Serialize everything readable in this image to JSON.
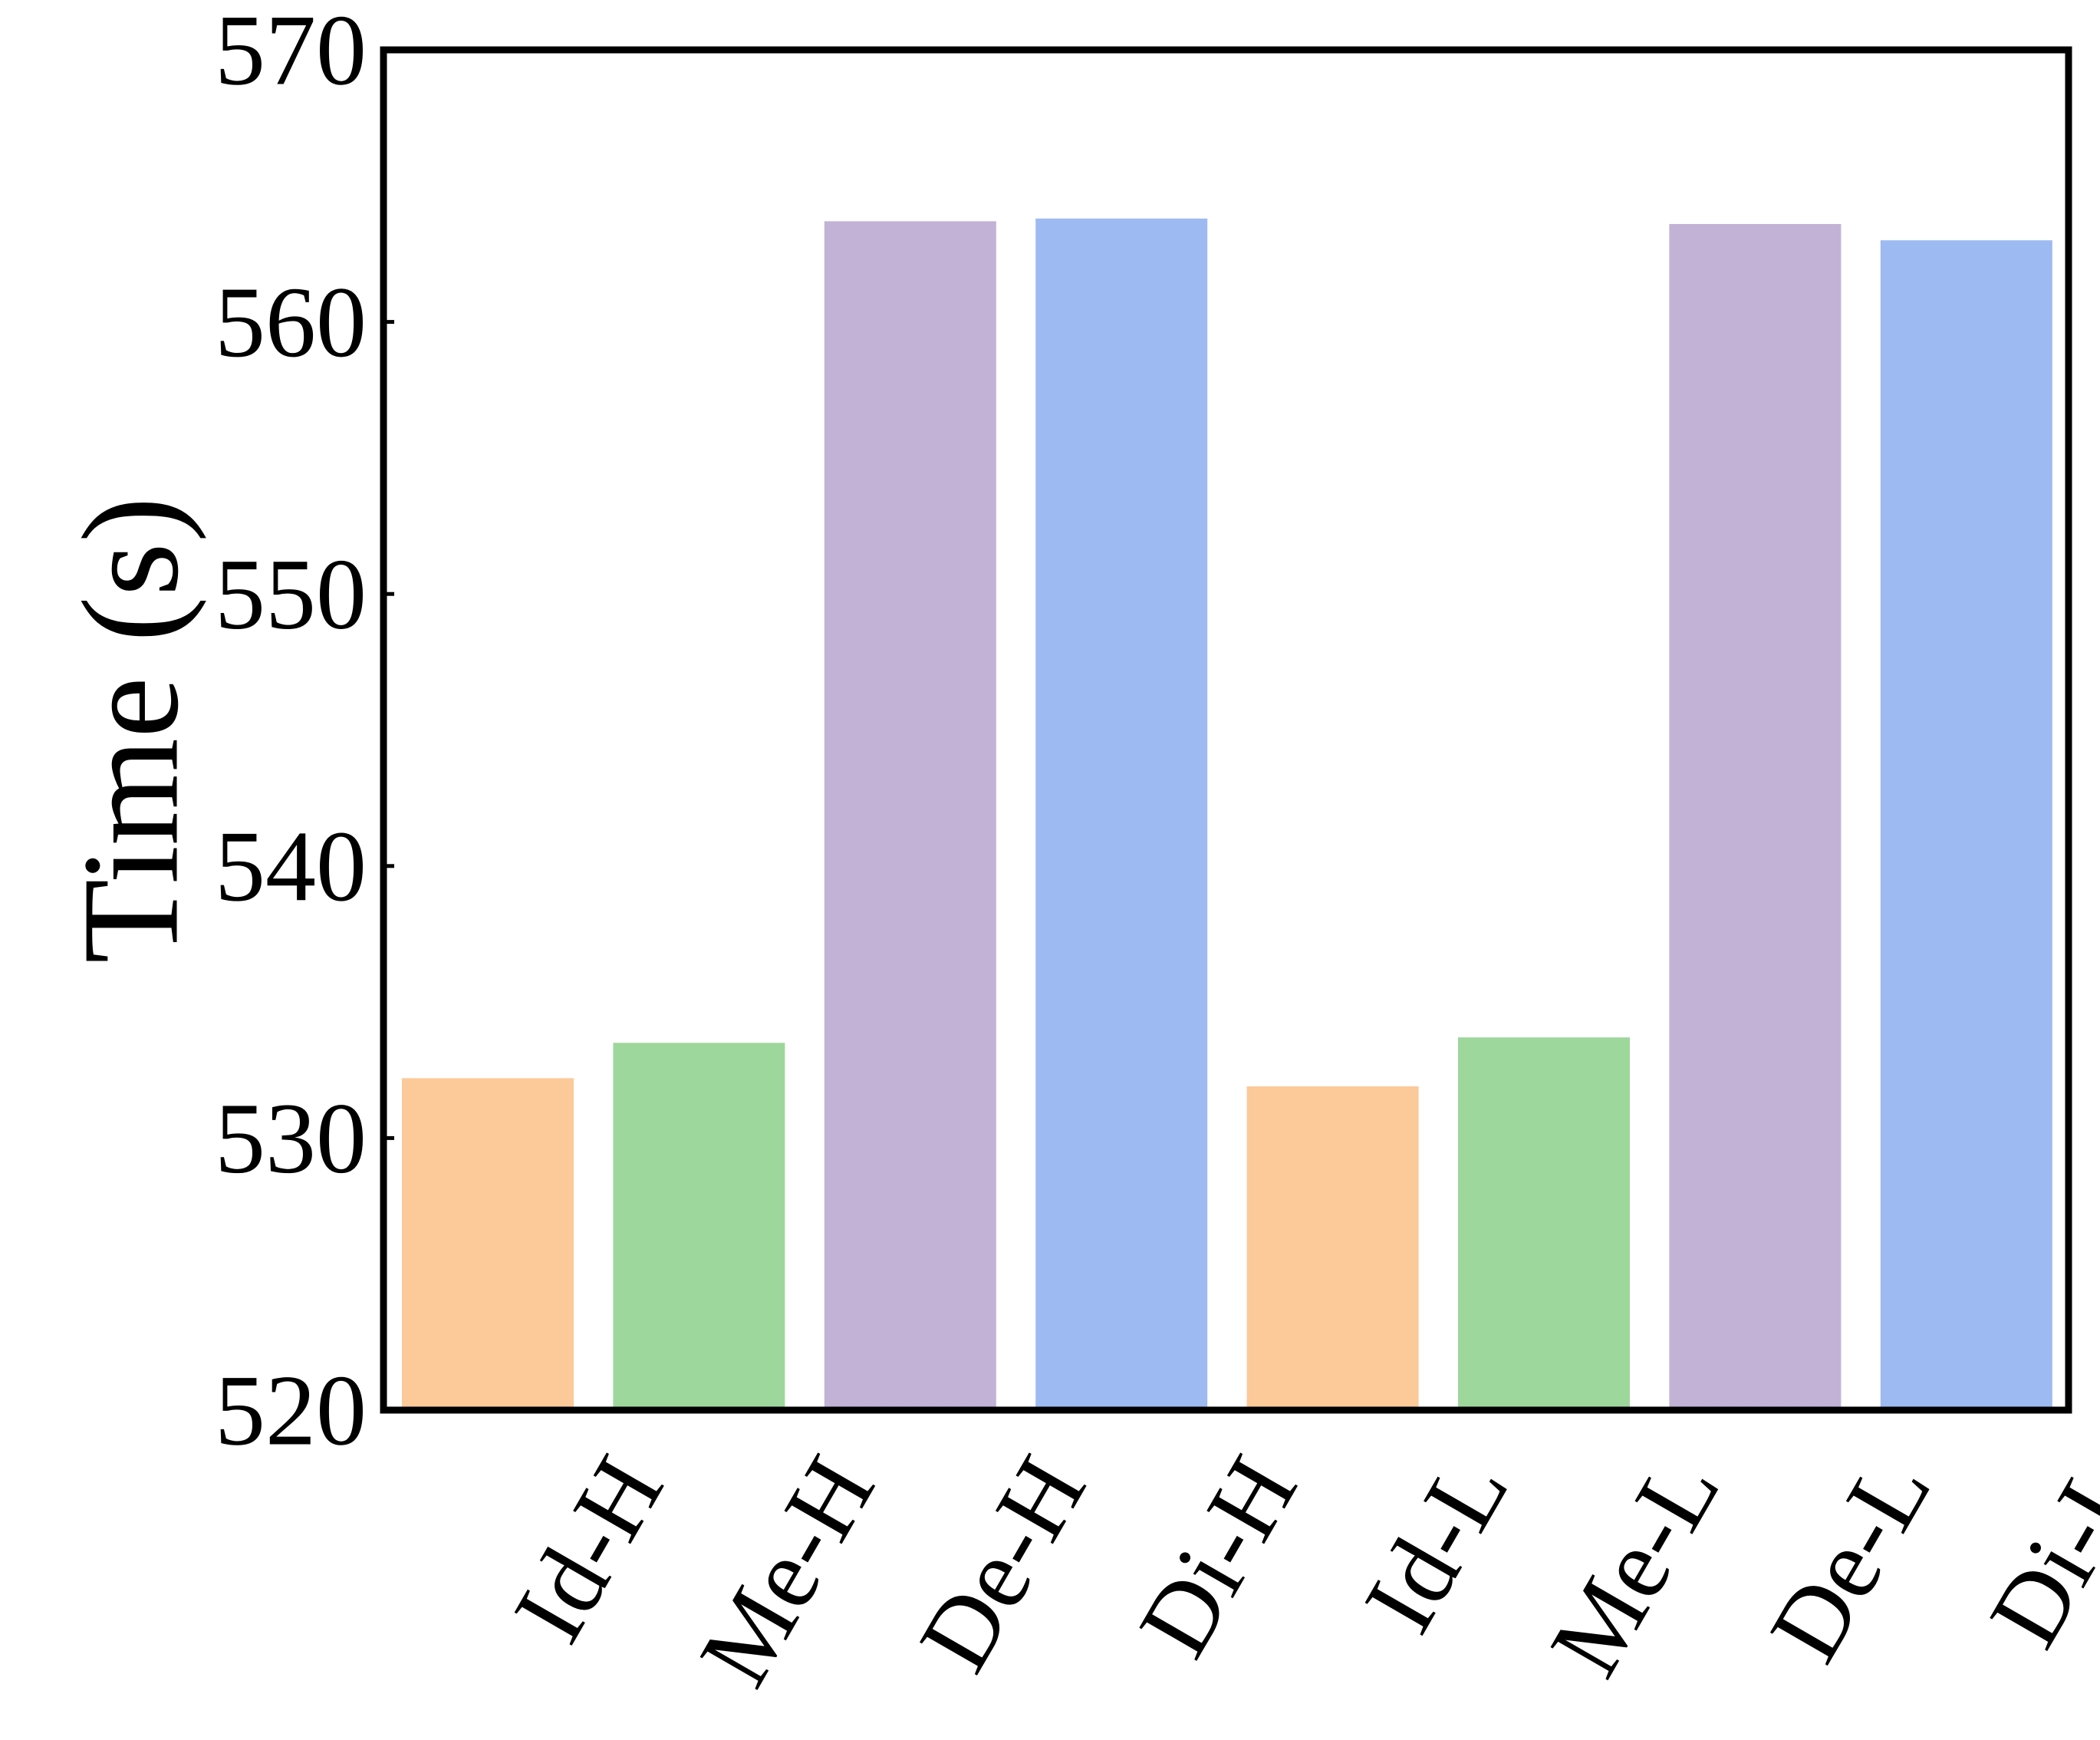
{
  "chart_data": {
    "type": "bar",
    "title": "",
    "xlabel": "",
    "ylabel": "Time (s)",
    "categories": [
      "Id-H",
      "Me-H",
      "De-H",
      "Di-H",
      "Id-L",
      "Me-L",
      "De-L",
      "Di-L"
    ],
    "values": [
      532.2,
      533.5,
      563.7,
      563.8,
      531.9,
      533.7,
      563.6,
      563.0
    ],
    "bar_colors": [
      "#fcc999",
      "#9ed79c",
      "#c2b2d6",
      "#9dbbf2",
      "#fcc999",
      "#9ed79c",
      "#c2b2d6",
      "#9dbbf2"
    ],
    "ylim": [
      520,
      570
    ],
    "yticks": [
      520,
      530,
      540,
      550,
      560,
      570
    ],
    "grid": false,
    "legend": "none"
  }
}
